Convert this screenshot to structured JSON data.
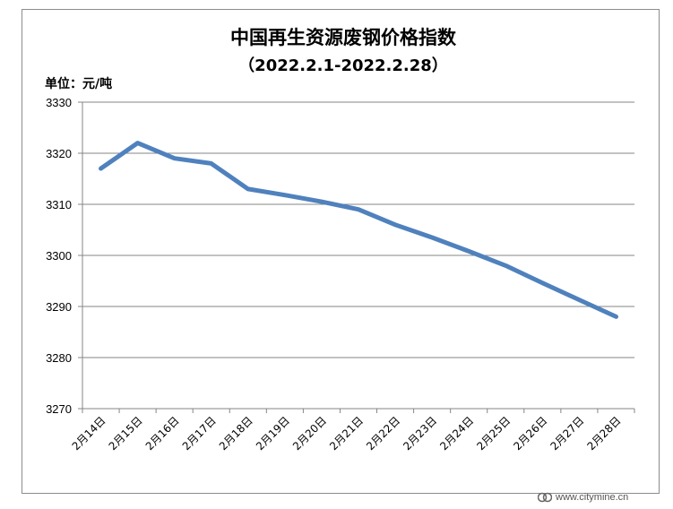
{
  "chart_data": {
    "type": "line",
    "title": "中国再生资源废钢价格指数",
    "subtitle": "（2022.2.1-2022.2.28）",
    "unit_label": "单位：元/吨",
    "categories": [
      "2月14日",
      "2月15日",
      "2月16日",
      "2月17日",
      "2月18日",
      "2月19日",
      "2月20日",
      "2月21日",
      "2月22日",
      "2月23日",
      "2月24日",
      "2月25日",
      "2月26日",
      "2月27日",
      "2月28日"
    ],
    "series": [
      {
        "values": [
          3317,
          3322,
          3319,
          3318,
          3313,
          3311.8,
          3310.5,
          3309,
          3306,
          3303.5,
          3300.8,
          3298,
          3294.6,
          3291.3,
          3288
        ]
      }
    ],
    "ylim": [
      3270,
      3330
    ],
    "yticks": [
      3270,
      3280,
      3290,
      3300,
      3310,
      3320,
      3330
    ],
    "grid": true,
    "line_color": "#4f81bd"
  },
  "watermark": {
    "text": "www.citymine.cn"
  }
}
